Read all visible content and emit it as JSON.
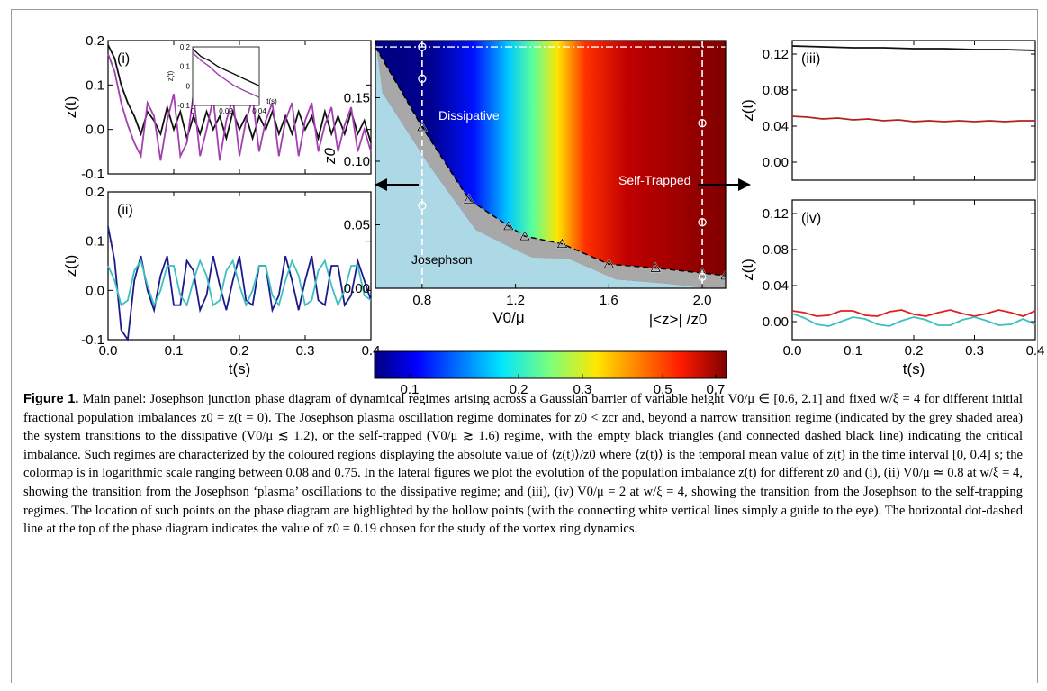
{
  "chart_data": [
    {
      "type": "line",
      "panel": "(i)",
      "xlabel": "",
      "ylabel": "z(t)",
      "xlim": [
        0,
        0.4
      ],
      "ylim": [
        -0.1,
        0.2
      ],
      "x_ticks": [],
      "y_ticks": [
        "-0.1",
        "0.0",
        "0.1",
        "0.2"
      ],
      "series": [
        {
          "color": "#111111",
          "x": [
            0,
            0.01,
            0.02,
            0.03,
            0.04,
            0.05,
            0.06,
            0.07,
            0.08,
            0.09,
            0.1,
            0.11,
            0.12,
            0.13,
            0.14,
            0.15,
            0.16,
            0.17,
            0.18,
            0.19,
            0.2,
            0.21,
            0.22,
            0.23,
            0.24,
            0.25,
            0.26,
            0.27,
            0.28,
            0.29,
            0.3,
            0.31,
            0.32,
            0.33,
            0.34,
            0.35,
            0.36,
            0.37,
            0.38,
            0.39,
            0.4
          ],
          "y": [
            0.19,
            0.16,
            0.1,
            0.06,
            0.03,
            -0.01,
            0.04,
            0.02,
            -0.01,
            0.05,
            0.0,
            0.04,
            -0.02,
            0.03,
            -0.01,
            0.04,
            0.0,
            0.03,
            -0.02,
            0.04,
            0.0,
            0.03,
            -0.02,
            0.03,
            0.0,
            0.04,
            -0.01,
            0.03,
            -0.01,
            0.04,
            0.0,
            0.03,
            -0.02,
            0.04,
            -0.01,
            0.03,
            -0.01,
            0.04,
            -0.01,
            0.02,
            -0.03
          ]
        },
        {
          "color": "#a33fb0",
          "x": [
            0,
            0.01,
            0.02,
            0.03,
            0.04,
            0.05,
            0.06,
            0.07,
            0.08,
            0.09,
            0.1,
            0.11,
            0.12,
            0.13,
            0.14,
            0.15,
            0.16,
            0.17,
            0.18,
            0.19,
            0.2,
            0.21,
            0.22,
            0.23,
            0.24,
            0.25,
            0.26,
            0.27,
            0.28,
            0.29,
            0.3,
            0.31,
            0.32,
            0.33,
            0.34,
            0.35,
            0.36,
            0.37,
            0.38,
            0.39,
            0.4
          ],
          "y": [
            0.17,
            0.13,
            0.06,
            0.01,
            -0.03,
            -0.06,
            0.06,
            0.03,
            -0.07,
            0.02,
            0.08,
            -0.06,
            -0.03,
            0.08,
            -0.06,
            0.0,
            0.07,
            -0.07,
            0.02,
            0.07,
            -0.06,
            0.02,
            0.07,
            -0.05,
            0.02,
            0.06,
            -0.06,
            0.02,
            0.06,
            -0.06,
            0.02,
            0.06,
            -0.05,
            0.01,
            0.05,
            -0.05,
            0.01,
            0.05,
            -0.05,
            0.0,
            -0.05
          ]
        }
      ],
      "inset": {
        "xlabel": "t(s)",
        "ylabel": "z(t)",
        "xlim": [
          0,
          0.04
        ],
        "ylim": [
          -0.1,
          0.2
        ],
        "x_ticks": [
          "0",
          "0.02",
          "0.04"
        ],
        "y_ticks": [
          "-0.1",
          "0",
          "0.1",
          "0.2"
        ],
        "series": [
          {
            "color": "#111111",
            "x": [
              0,
              0.005,
              0.01,
              0.015,
              0.02,
              0.025,
              0.03,
              0.035,
              0.04
            ],
            "y": [
              0.19,
              0.15,
              0.13,
              0.1,
              0.08,
              0.06,
              0.04,
              0.02,
              0.0
            ]
          },
          {
            "color": "#a33fb0",
            "x": [
              0,
              0.005,
              0.01,
              0.015,
              0.02,
              0.025,
              0.03,
              0.035,
              0.04
            ],
            "y": [
              0.17,
              0.13,
              0.1,
              0.06,
              0.03,
              0.0,
              -0.02,
              -0.04,
              -0.06
            ]
          }
        ]
      }
    },
    {
      "type": "line",
      "panel": "(ii)",
      "xlabel": "t(s)",
      "ylabel": "z(t)",
      "xlim": [
        0,
        0.4
      ],
      "ylim": [
        -0.1,
        0.2
      ],
      "x_ticks": [
        "0.0",
        "0.1",
        "0.2",
        "0.3",
        "0.4"
      ],
      "y_ticks": [
        "-0.1",
        "0.0",
        "0.1",
        "0.2"
      ],
      "series": [
        {
          "color": "#1a1a8c",
          "x": [
            0,
            0.01,
            0.02,
            0.03,
            0.04,
            0.05,
            0.06,
            0.07,
            0.08,
            0.09,
            0.1,
            0.11,
            0.12,
            0.13,
            0.14,
            0.15,
            0.16,
            0.17,
            0.18,
            0.19,
            0.2,
            0.21,
            0.22,
            0.23,
            0.24,
            0.25,
            0.26,
            0.27,
            0.28,
            0.29,
            0.3,
            0.31,
            0.32,
            0.33,
            0.34,
            0.35,
            0.36,
            0.37,
            0.38,
            0.39,
            0.4
          ],
          "y": [
            0.13,
            0.06,
            -0.08,
            -0.1,
            0.02,
            0.07,
            0.0,
            -0.04,
            0.03,
            0.07,
            -0.03,
            -0.03,
            0.06,
            0.04,
            -0.04,
            -0.01,
            0.07,
            0.01,
            -0.04,
            0.02,
            0.07,
            -0.02,
            -0.03,
            0.05,
            0.05,
            -0.04,
            -0.01,
            0.07,
            0.02,
            -0.04,
            0.02,
            0.07,
            -0.02,
            -0.03,
            0.05,
            0.05,
            -0.03,
            -0.01,
            0.06,
            0.02,
            -0.02
          ]
        },
        {
          "color": "#3ebfbf",
          "x": [
            0,
            0.01,
            0.02,
            0.03,
            0.04,
            0.05,
            0.06,
            0.07,
            0.08,
            0.09,
            0.1,
            0.11,
            0.12,
            0.13,
            0.14,
            0.15,
            0.16,
            0.17,
            0.18,
            0.19,
            0.2,
            0.21,
            0.22,
            0.23,
            0.24,
            0.25,
            0.26,
            0.27,
            0.28,
            0.29,
            0.3,
            0.31,
            0.32,
            0.33,
            0.34,
            0.35,
            0.36,
            0.37,
            0.38,
            0.39,
            0.4
          ],
          "y": [
            0.05,
            0.02,
            -0.03,
            -0.02,
            0.04,
            0.06,
            0.01,
            -0.03,
            0.0,
            0.05,
            0.05,
            -0.01,
            -0.03,
            0.02,
            0.06,
            0.03,
            -0.03,
            -0.02,
            0.04,
            0.06,
            0.01,
            -0.03,
            0.0,
            0.05,
            0.05,
            -0.01,
            -0.03,
            0.02,
            0.06,
            0.03,
            -0.03,
            -0.02,
            0.04,
            0.06,
            0.01,
            -0.03,
            0.0,
            0.05,
            0.05,
            -0.01,
            -0.02
          ]
        }
      ]
    },
    {
      "type": "heatmap",
      "panel": "main",
      "xlabel": "V0/μ",
      "ylabel": "z0",
      "xlim": [
        0.6,
        2.1
      ],
      "ylim": [
        0.0,
        0.195
      ],
      "x_ticks": [
        "0.8",
        "1.2",
        "1.6",
        "2.0"
      ],
      "y_ticks": [
        "0.00",
        "0.05",
        "0.10",
        "0.15"
      ],
      "region_labels": [
        "Dissipative",
        "Self-Trapped",
        "Josephson"
      ],
      "colorbar_label": "|<z>| /z0",
      "colorbar_ticks": [
        "0.1",
        "0.2",
        "0.3",
        "0.5",
        "0.7"
      ],
      "colorbar_range": [
        0.08,
        0.75
      ],
      "colorbar_scale": "log",
      "critical_line": {
        "x": [
          0.6,
          0.8,
          1.0,
          1.17,
          1.24,
          1.4,
          1.6,
          1.8,
          2.0,
          2.1
        ],
        "y": [
          0.19,
          0.127,
          0.07,
          0.049,
          0.041,
          0.035,
          0.019,
          0.016,
          0.012,
          0.01
        ]
      },
      "triangles": {
        "x": [
          0.8,
          1.0,
          1.17,
          1.24,
          1.4,
          1.6,
          1.8,
          2.0,
          2.1
        ],
        "y": [
          0.127,
          0.07,
          0.049,
          0.041,
          0.035,
          0.019,
          0.016,
          0.012,
          0.01
        ]
      },
      "hollow_points": {
        "x": [
          0.8,
          0.8,
          0.8,
          2.0,
          2.0,
          2.0
        ],
        "y": [
          0.19,
          0.165,
          0.065,
          0.13,
          0.052,
          0.009
        ]
      },
      "reference_line_z0": 0.19
    },
    {
      "type": "line",
      "panel": "(iii)",
      "xlabel": "",
      "ylabel": "z(t)",
      "xlim": [
        0,
        0.4
      ],
      "ylim": [
        -0.02,
        0.135
      ],
      "x_ticks": [],
      "y_ticks": [
        "0.00",
        "0.04",
        "0.08",
        "0.12"
      ],
      "series": [
        {
          "color": "#111111",
          "x": [
            0,
            0.05,
            0.1,
            0.15,
            0.2,
            0.25,
            0.3,
            0.35,
            0.4
          ],
          "y": [
            0.129,
            0.128,
            0.127,
            0.127,
            0.126,
            0.126,
            0.125,
            0.125,
            0.124
          ]
        },
        {
          "color": "#b22222",
          "x": [
            0,
            0.025,
            0.05,
            0.075,
            0.1,
            0.125,
            0.15,
            0.175,
            0.2,
            0.225,
            0.25,
            0.275,
            0.3,
            0.325,
            0.35,
            0.375,
            0.4
          ],
          "y": [
            0.051,
            0.05,
            0.048,
            0.049,
            0.047,
            0.048,
            0.046,
            0.047,
            0.045,
            0.046,
            0.045,
            0.046,
            0.045,
            0.046,
            0.045,
            0.046,
            0.046
          ]
        }
      ]
    },
    {
      "type": "line",
      "panel": "(iv)",
      "xlabel": "t(s)",
      "ylabel": "z(t)",
      "xlim": [
        0,
        0.4
      ],
      "ylim": [
        -0.02,
        0.135
      ],
      "x_ticks": [
        "0.0",
        "0.1",
        "0.2",
        "0.3",
        "0.4"
      ],
      "y_ticks": [
        "0.00",
        "0.04",
        "0.08",
        "0.12"
      ],
      "series": [
        {
          "color": "#e02020",
          "x": [
            0,
            0.02,
            0.04,
            0.06,
            0.08,
            0.1,
            0.12,
            0.14,
            0.16,
            0.18,
            0.2,
            0.22,
            0.24,
            0.26,
            0.28,
            0.3,
            0.32,
            0.34,
            0.36,
            0.38,
            0.4
          ],
          "y": [
            0.012,
            0.01,
            0.006,
            0.007,
            0.012,
            0.012,
            0.007,
            0.006,
            0.011,
            0.013,
            0.008,
            0.006,
            0.01,
            0.013,
            0.009,
            0.006,
            0.009,
            0.013,
            0.01,
            0.006,
            0.012
          ]
        },
        {
          "color": "#3ebfbf",
          "x": [
            0,
            0.02,
            0.04,
            0.06,
            0.08,
            0.1,
            0.12,
            0.14,
            0.16,
            0.18,
            0.2,
            0.22,
            0.24,
            0.26,
            0.28,
            0.3,
            0.32,
            0.34,
            0.36,
            0.38,
            0.4
          ],
          "y": [
            0.009,
            0.004,
            -0.003,
            -0.005,
            0.0,
            0.005,
            0.003,
            -0.003,
            -0.005,
            0.001,
            0.005,
            0.002,
            -0.004,
            -0.004,
            0.002,
            0.005,
            0.001,
            -0.004,
            -0.003,
            0.003,
            -0.003
          ]
        }
      ]
    }
  ],
  "caption": {
    "label": "Figure 1.",
    "text": "Main panel: Josephson junction phase diagram of dynamical regimes arising across a Gaussian barrier of variable height V0/μ ∈ [0.6, 2.1] and fixed w/ξ = 4 for different initial fractional population imbalances z0 = z(t = 0). The Josephson plasma oscillation regime dominates for z0 < zcr and, beyond a narrow transition regime (indicated by the grey shaded area) the system transitions to the dissipative (V0/μ ≲ 1.2), or the self-trapped (V0/μ ≳ 1.6) regime, with the empty black triangles (and connected dashed black line) indicating the critical imbalance. Such regimes are characterized by the coloured regions displaying the absolute value of ⟨z(t)⟩/z0 where ⟨z(t)⟩ is the temporal mean value of z(t) in the time interval [0, 0.4] s; the colormap is in logarithmic scale ranging between 0.08 and 0.75. In the lateral figures we plot the evolution of the population imbalance z(t) for different z0 and (i), (ii) V0/μ ≃ 0.8 at w/ξ = 4, showing the transition from the Josephson ‘plasma’ oscillations to the dissipative regime; and (iii), (iv) V0/μ = 2 at w/ξ = 4, showing the transition from the Josephson to the self-trapping regimes. The location of such points on the phase diagram are highlighted by the hollow points (with the connecting white vertical lines simply a guide to the eye). The horizontal dot-dashed line at the top of the phase diagram indicates the value of z0 = 0.19 chosen for the study of the vortex ring dynamics."
  }
}
